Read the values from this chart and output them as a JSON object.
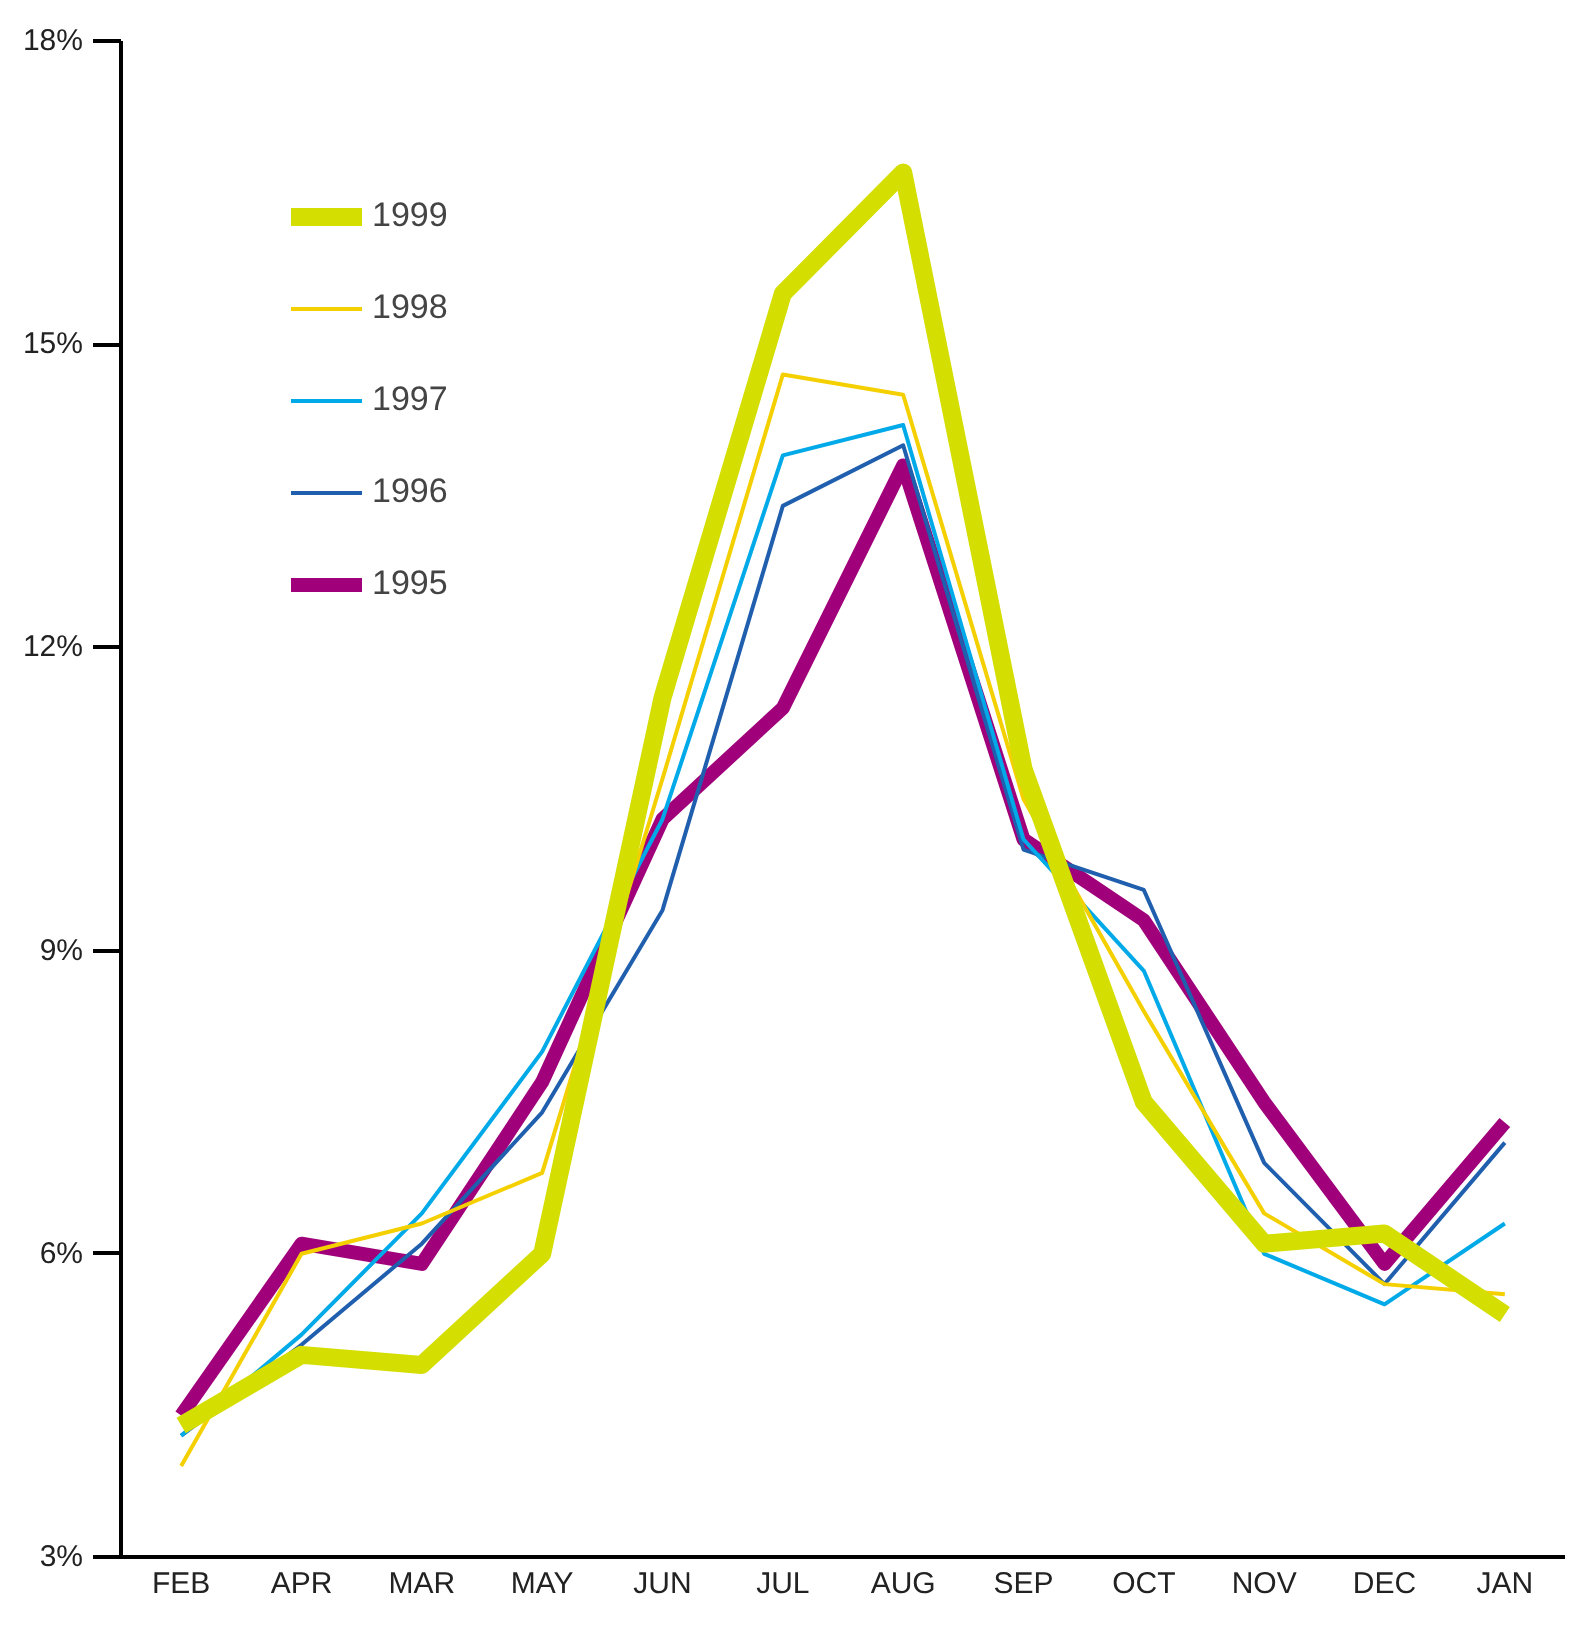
{
  "chart_data": {
    "type": "line",
    "categories": [
      "FEB",
      "APR",
      "MAR",
      "MAY",
      "JUN",
      "JUL",
      "AUG",
      "SEP",
      "OCT",
      "NOV",
      "DEC",
      "JAN"
    ],
    "series": [
      {
        "name": "1999",
        "color": "#d4de00",
        "values": [
          4.3,
          5.0,
          4.9,
          6.0,
          11.5,
          15.5,
          16.7,
          10.8,
          7.5,
          6.1,
          6.2,
          5.4
        ]
      },
      {
        "name": "1998",
        "color": "#f5d000",
        "values": [
          3.9,
          6.0,
          6.3,
          6.8,
          10.7,
          14.7,
          14.5,
          10.5,
          8.4,
          6.4,
          5.7,
          5.6
        ]
      },
      {
        "name": "1997",
        "color": "#00a9e8",
        "values": [
          4.2,
          5.2,
          6.4,
          8.0,
          10.3,
          13.9,
          14.2,
          10.1,
          8.8,
          6.0,
          5.5,
          6.3
        ]
      },
      {
        "name": "1996",
        "color": "#1f5fae",
        "values": [
          4.2,
          5.1,
          6.1,
          7.4,
          9.4,
          13.4,
          14.0,
          10.0,
          9.6,
          6.9,
          5.7,
          7.1
        ]
      },
      {
        "name": "1995",
        "color": "#a0007a",
        "values": [
          4.4,
          6.1,
          5.9,
          7.7,
          10.3,
          11.4,
          13.8,
          10.1,
          9.3,
          7.5,
          5.9,
          7.3
        ]
      }
    ],
    "ylim": [
      3,
      18
    ],
    "yticks": [
      {
        "value": 3,
        "label": "3%"
      },
      {
        "value": 6,
        "label": "6%"
      },
      {
        "value": 9,
        "label": "9%"
      },
      {
        "value": 12,
        "label": "12%"
      },
      {
        "value": 15,
        "label": "15%"
      },
      {
        "value": 18,
        "label": "18%"
      }
    ],
    "grid": false,
    "legend": "top left"
  }
}
